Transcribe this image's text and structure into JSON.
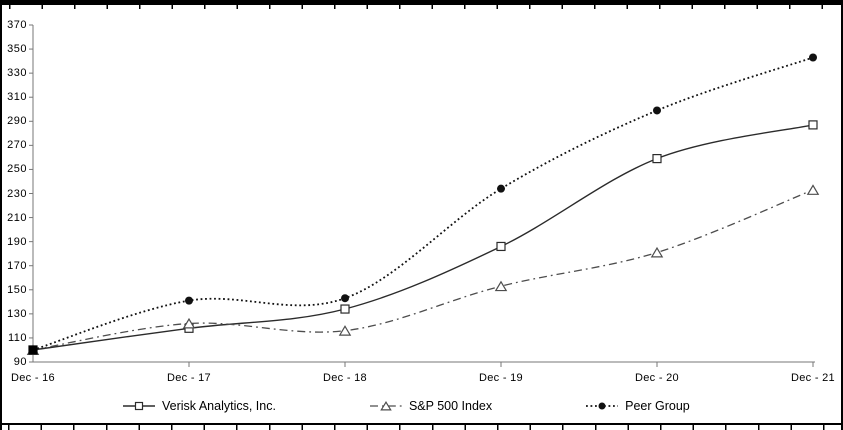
{
  "chart_data": {
    "type": "line",
    "title": "",
    "xlabel": "",
    "ylabel": "",
    "categories": [
      "Dec - 16",
      "Dec - 17",
      "Dec - 18",
      "Dec - 19",
      "Dec - 20",
      "Dec - 21"
    ],
    "y_ticks": [
      90,
      110,
      130,
      150,
      170,
      190,
      210,
      230,
      250,
      270,
      290,
      310,
      330,
      350,
      370
    ],
    "ylim": [
      90,
      370
    ],
    "grid": false,
    "legend_position": "bottom",
    "series": [
      {
        "name": "Verisk Analytics, Inc.",
        "line_style": "solid",
        "marker": "open-square",
        "color": "#2b2b2b",
        "values": [
          100,
          118,
          134,
          186,
          259,
          287
        ]
      },
      {
        "name": "S&P 500 Index",
        "line_style": "dash-dot",
        "marker": "open-triangle",
        "color": "#4d4d4d",
        "values": [
          100,
          122,
          116,
          153,
          181,
          233
        ]
      },
      {
        "name": "Peer Group",
        "line_style": "dotted",
        "marker": "filled-circle",
        "color": "#111111",
        "values": [
          100,
          141,
          143,
          234,
          299,
          343
        ]
      }
    ]
  }
}
